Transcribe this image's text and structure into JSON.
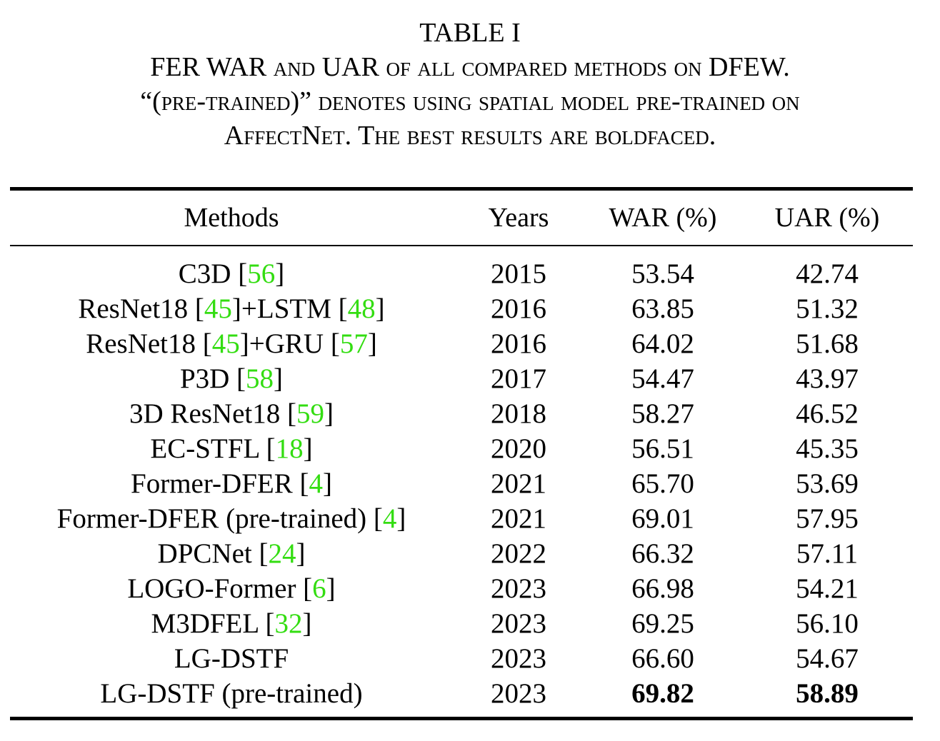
{
  "caption": {
    "table_label": "TABLE I",
    "line1": [
      "FER WAR ",
      "and",
      " UAR ",
      "of all compared methods on",
      " DFEW."
    ],
    "line2_quote_open": "“(",
    "line2_sc": "pre-trained",
    "line2_quote_close": ")”",
    "line2_rest": " denotes using spatial model pre-trained on",
    "line3_a": "AffectNet",
    "line3_b": ". The best results are boldfaced."
  },
  "table": {
    "headers": [
      "Methods",
      "Years",
      "WAR (%)",
      "UAR (%)"
    ],
    "rows": [
      {
        "method": [
          "C3D [",
          "56",
          "]"
        ],
        "year": "2015",
        "war": "53.54",
        "uar": "42.74"
      },
      {
        "method": [
          "ResNet18 [",
          "45",
          "]+LSTM [",
          "48",
          "]"
        ],
        "year": "2016",
        "war": "63.85",
        "uar": "51.32"
      },
      {
        "method": [
          "ResNet18 [",
          "45",
          "]+GRU [",
          "57",
          "]"
        ],
        "year": "2016",
        "war": "64.02",
        "uar": "51.68"
      },
      {
        "method": [
          "P3D [",
          "58",
          "]"
        ],
        "year": "2017",
        "war": "54.47",
        "uar": "43.97"
      },
      {
        "method": [
          "3D ResNet18 [",
          "59",
          "]"
        ],
        "year": "2018",
        "war": "58.27",
        "uar": "46.52"
      },
      {
        "method": [
          "EC-STFL [",
          "18",
          "]"
        ],
        "year": "2020",
        "war": "56.51",
        "uar": "45.35"
      },
      {
        "method": [
          "Former-DFER [",
          "4",
          "]"
        ],
        "year": "2021",
        "war": "65.70",
        "uar": "53.69"
      },
      {
        "method": [
          "Former-DFER (pre-trained) [",
          "4",
          "]"
        ],
        "year": "2021",
        "war": "69.01",
        "uar": "57.95"
      },
      {
        "method": [
          "DPCNet [",
          "24",
          "]"
        ],
        "year": "2022",
        "war": "66.32",
        "uar": "57.11"
      },
      {
        "method": [
          "LOGO-Former [",
          "6",
          "]"
        ],
        "year": "2023",
        "war": "66.98",
        "uar": "54.21"
      },
      {
        "method": [
          "M3DFEL [",
          "32",
          "]"
        ],
        "year": "2023",
        "war": "69.25",
        "uar": "56.10"
      },
      {
        "method": [
          "LG-DSTF"
        ],
        "year": "2023",
        "war": "66.60",
        "uar": "54.67"
      },
      {
        "method": [
          "LG-DSTF (pre-trained)"
        ],
        "year": "2023",
        "war": "69.82",
        "uar": "58.89",
        "best_war": true,
        "best_uar": true
      }
    ]
  },
  "colors": {
    "citation": "#33dd11",
    "text": "#000000",
    "rules": "#000000"
  }
}
